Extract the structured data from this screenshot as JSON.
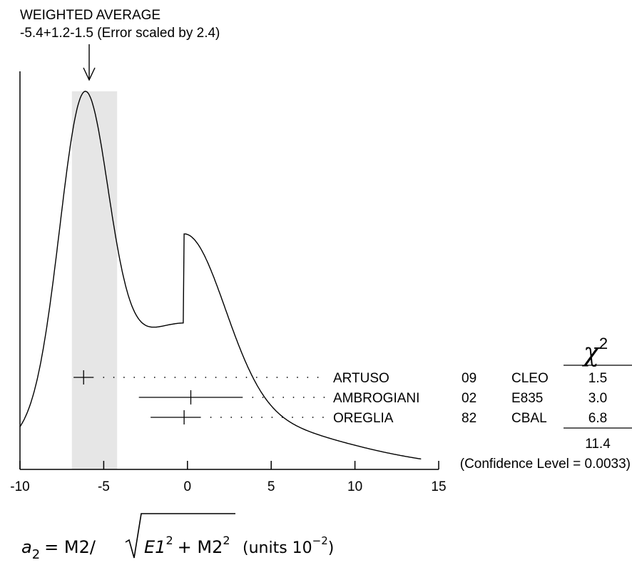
{
  "chart_data": {
    "type": "ideogram",
    "average": {
      "label": "WEIGHTED AVERAGE",
      "text": "-5.4+1.2-1.5 (Error scaled by 2.4)",
      "value": -5.4,
      "err_plus": 1.2,
      "err_minus": 1.5
    },
    "xlim": [
      -10,
      15
    ],
    "x_ticks": [
      -10,
      -5,
      0,
      5,
      10,
      15
    ],
    "xlabel": {
      "a": "a",
      "a_sub": "2",
      "eq": "= M2/",
      "rad_a": "E1",
      "rad_a_sup": "2",
      "plus": "+ M2",
      "rad_b_sup": "2",
      "units": "(units 10",
      "units_sup": "−2",
      "close": ")"
    },
    "chi2_header": "χ",
    "chi2_header_sup": "2",
    "measurements": [
      {
        "author": "ARTUSO",
        "year": "09",
        "experiment": "CLEO",
        "chi2": "1.5",
        "value": -6.2,
        "err_minus": 0.6,
        "err_plus": 0.6
      },
      {
        "author": "AMBROGIANI",
        "year": "02",
        "experiment": "E835",
        "chi2": "3.0",
        "value": 0.2,
        "err_minus": 3.1,
        "err_plus": 3.1
      },
      {
        "author": "OREGLIA",
        "year": "82",
        "experiment": "CBAL",
        "chi2": "6.8",
        "value": -0.2,
        "err_minus": 2.0,
        "err_plus": 1.0
      }
    ],
    "chi2_total": "11.4",
    "confidence_level": "(Confidence Level = 0.0033)"
  }
}
